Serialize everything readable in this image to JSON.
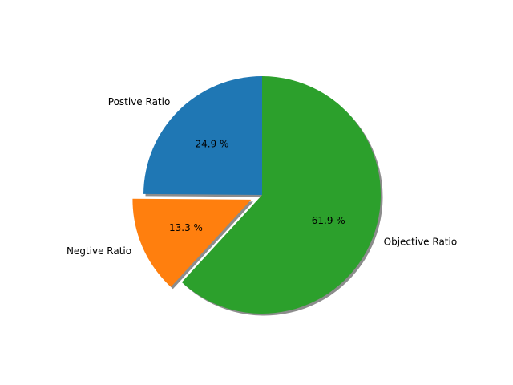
{
  "chart_data": {
    "type": "pie",
    "title": "",
    "slices": [
      {
        "label": "Postive Ratio",
        "value": 24.9,
        "pct_label": "24.9 %",
        "color": "#1f77b4",
        "exploded": false
      },
      {
        "label": "Negtive Ratio",
        "value": 13.3,
        "pct_label": "13.3 %",
        "color": "#ff7f0e",
        "exploded": true
      },
      {
        "label": "Objective Ratio",
        "value": 61.9,
        "pct_label": "61.9 %",
        "color": "#2ca02c",
        "exploded": false
      }
    ],
    "start_angle_deg": 90,
    "direction": "counterclockwise",
    "shadow": true,
    "legend": "none"
  }
}
